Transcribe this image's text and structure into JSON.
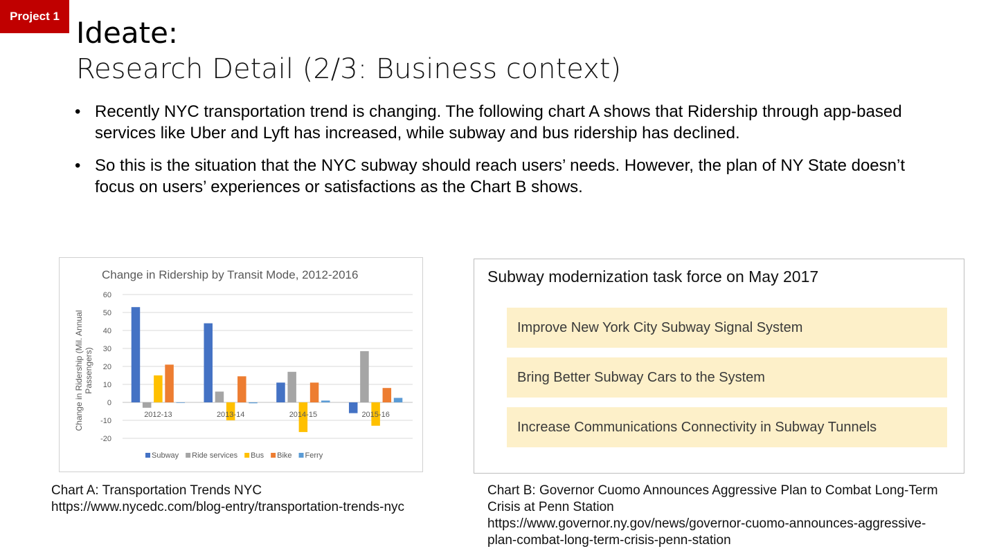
{
  "badge": "Project 1",
  "title": "Ideate:",
  "subtitle": "Research Detail (2/3: Business context)",
  "bullets": [
    "Recently NYC transportation trend is changing. The following chart A shows that Ridership through app-based services like Uber and Lyft has increased, while subway and bus ridership has declined.",
    "So this is the situation that the NYC subway should reach users’ needs. However, the plan of NY State doesn’t focus on users’ experiences or satisfactions as the Chart B shows."
  ],
  "bullet_glyph": "•",
  "chart_data": {
    "type": "bar",
    "title": "Change in Ridership by Transit Mode, 2012-2016",
    "xlabel": "",
    "ylabel_lines": [
      "Change in Ridership (Mil. Annual",
      "Passengers)"
    ],
    "categories": [
      "2012-13",
      "2013-14",
      "2014-15",
      "2015-16"
    ],
    "ylim": [
      -20,
      60
    ],
    "yticks": [
      -20,
      -10,
      0,
      10,
      20,
      30,
      40,
      50,
      60
    ],
    "grid": true,
    "legend": "bottom",
    "series": [
      {
        "name": "Subway",
        "color": "#4472c4",
        "values": [
          53,
          44,
          11,
          -6
        ]
      },
      {
        "name": "Ride services",
        "color": "#a5a5a5",
        "values": [
          -3,
          6,
          17,
          28.5
        ]
      },
      {
        "name": "Bus",
        "color": "#ffc000",
        "values": [
          15,
          -10,
          -16.5,
          -13
        ]
      },
      {
        "name": "Bike",
        "color": "#ed7d31",
        "values": [
          21,
          14.5,
          11,
          8
        ]
      },
      {
        "name": "Ferry",
        "color": "#5b9bd5",
        "values": [
          0,
          -0.5,
          1,
          2.5
        ]
      }
    ]
  },
  "captionA": {
    "line1": "Chart A: Transportation Trends NYC",
    "line2": "https://www.nycedc.com/blog-entry/transportation-trends-nyc"
  },
  "taskforce": {
    "title": "Subway modernization task force on May 2017",
    "items": [
      "Improve New York City Subway Signal System",
      "Bring Better Subway Cars to the System",
      "Increase Communications Connectivity in Subway Tunnels"
    ]
  },
  "captionB": {
    "line1": "Chart B: Governor Cuomo Announces Aggressive Plan to Combat Long-Term",
    "line2": "Crisis at Penn Station",
    "line3": "https://www.governor.ny.gov/news/governor-cuomo-announces-aggressive-",
    "line4": "plan-combat-long-term-crisis-penn-station"
  }
}
